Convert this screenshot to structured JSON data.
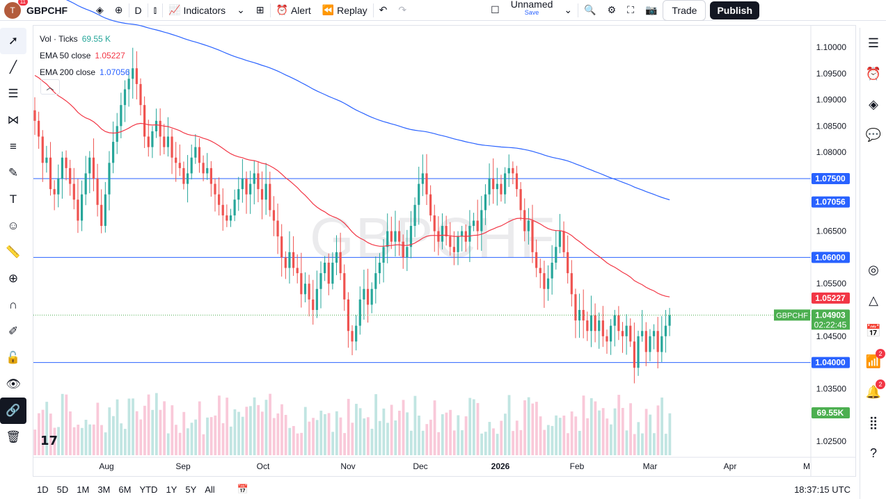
{
  "toolbar": {
    "avatar_letter": "T",
    "avatar_badge": "11",
    "symbol": "GBPCHF",
    "interval": "D",
    "indicators_label": "Indicators",
    "alert_label": "Alert",
    "replay_label": "Replay",
    "layout_name": "Unnamed",
    "layout_save": "Save",
    "trade_label": "Trade",
    "publish_label": "Publish"
  },
  "legend": {
    "vol_label": "Vol · Ticks",
    "vol_value": "69.55 K",
    "ema50_label": "EMA 50 close",
    "ema50_value": "1.05227",
    "ema200_label": "EMA 200 close",
    "ema200_value": "1.07056",
    "collapse_icon": "chevron-up-icon"
  },
  "watermark": "GBPCHF",
  "bottombar": {
    "ranges": [
      "1D",
      "5D",
      "1M",
      "3M",
      "6M",
      "YTD",
      "1Y",
      "5Y",
      "All"
    ],
    "time": "18:37:15 UTC"
  },
  "right_badges": {
    "streams": "2",
    "alerts": "2"
  },
  "colors": {
    "up": "#26a69a",
    "down": "#ef5350",
    "ema50": "#f23645",
    "ema200": "#2962ff",
    "hline": "#2962ff",
    "price_label": "#4caf50"
  },
  "chart_data": {
    "type": "candlestick",
    "symbol": "GBPCHF",
    "y_ticks": [
      "1.10000",
      "1.09500",
      "1.09000",
      "1.08500",
      "1.08000",
      "1.07500",
      "1.07056",
      "1.06500",
      "1.06000",
      "1.05500",
      "1.05227",
      "1.04903",
      "1.04500",
      "1.04000",
      "1.03500",
      "69.55K",
      "1.02500"
    ],
    "x_ticks": [
      "Aug",
      "Sep",
      "Oct",
      "Nov",
      "Dec",
      "2026",
      "Feb",
      "Mar",
      "Apr",
      "M"
    ],
    "horizontal_lines": [
      1.075,
      1.06,
      1.04
    ],
    "last_price": "1.04903",
    "countdown": "02:22:45",
    "last_price_symbol": "GBPCHF",
    "ema50_last": "1.05227",
    "ema200_last": "1.07056",
    "volume_last": "69.55K",
    "ylim": [
      1.0225,
      1.1025
    ],
    "closes": [
      1.086,
      1.083,
      1.078,
      1.079,
      1.073,
      1.072,
      1.075,
      1.079,
      1.077,
      1.074,
      1.071,
      1.067,
      1.072,
      1.076,
      1.079,
      1.075,
      1.07,
      1.066,
      1.072,
      1.078,
      1.082,
      1.085,
      1.089,
      1.092,
      1.094,
      1.096,
      1.093,
      1.089,
      1.083,
      1.081,
      1.084,
      1.086,
      1.083,
      1.081,
      1.083,
      1.079,
      1.078,
      1.077,
      1.074,
      1.076,
      1.079,
      1.081,
      1.078,
      1.076,
      1.077,
      1.074,
      1.072,
      1.07,
      1.068,
      1.067,
      1.068,
      1.071,
      1.073,
      1.075,
      1.072,
      1.074,
      1.076,
      1.073,
      1.071,
      1.074,
      1.069,
      1.067,
      1.064,
      1.06,
      1.058,
      1.061,
      1.058,
      1.057,
      1.053,
      1.055,
      1.052,
      1.05,
      1.054,
      1.057,
      1.059,
      1.055,
      1.059,
      1.061,
      1.057,
      1.052,
      1.046,
      1.044,
      1.047,
      1.052,
      1.054,
      1.051,
      1.054,
      1.057,
      1.059,
      1.062,
      1.065,
      1.063,
      1.065,
      1.063,
      1.06,
      1.062,
      1.066,
      1.07,
      1.074,
      1.076,
      1.072,
      1.068,
      1.065,
      1.063,
      1.066,
      1.064,
      1.062,
      1.061,
      1.064,
      1.065,
      1.063,
      1.066,
      1.067,
      1.065,
      1.069,
      1.072,
      1.075,
      1.073,
      1.074,
      1.072,
      1.076,
      1.077,
      1.076,
      1.073,
      1.069,
      1.065,
      1.067,
      1.061,
      1.058,
      1.057,
      1.054,
      1.056,
      1.059,
      1.062,
      1.065,
      1.061,
      1.057,
      1.053,
      1.048,
      1.05,
      1.048,
      1.046,
      1.049,
      1.046,
      1.048,
      1.045,
      1.044,
      1.047,
      1.049,
      1.046,
      1.045,
      1.047,
      1.044,
      1.039,
      1.045,
      1.046,
      1.042,
      1.045,
      1.046,
      1.042,
      1.045,
      1.047,
      1.049
    ]
  }
}
